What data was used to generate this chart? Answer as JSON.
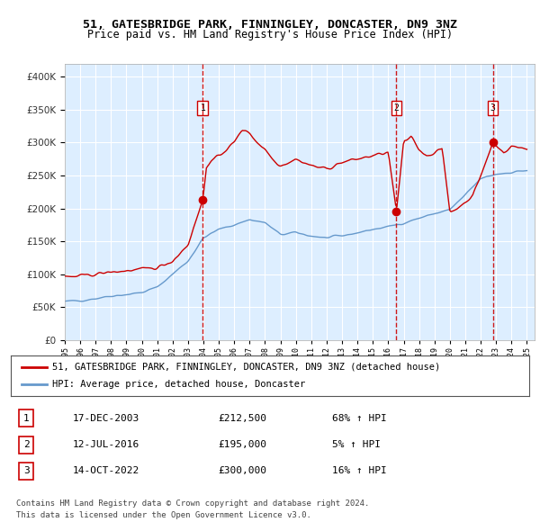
{
  "title1": "51, GATESBRIDGE PARK, FINNINGLEY, DONCASTER, DN9 3NZ",
  "title2": "Price paid vs. HM Land Registry's House Price Index (HPI)",
  "legend_line1": "51, GATESBRIDGE PARK, FINNINGLEY, DONCASTER, DN9 3NZ (detached house)",
  "legend_line2": "HPI: Average price, detached house, Doncaster",
  "sale1_date": "17-DEC-2003",
  "sale1_price": 212500,
  "sale1_hpi": "68% ↑ HPI",
  "sale2_date": "12-JUL-2016",
  "sale2_price": 195000,
  "sale2_hpi": "5% ↑ HPI",
  "sale3_date": "14-OCT-2022",
  "sale3_price": 300000,
  "sale3_hpi": "16% ↑ HPI",
  "footnote1": "Contains HM Land Registry data © Crown copyright and database right 2024.",
  "footnote2": "This data is licensed under the Open Government Licence v3.0.",
  "hpi_color": "#6699cc",
  "property_color": "#cc0000",
  "sale_marker_color": "#cc0000",
  "dashed_line_color": "#cc0000",
  "background_color": "#ddeeff",
  "grid_color": "#ffffff",
  "ylim": [
    0,
    420000
  ],
  "yticks": [
    0,
    50000,
    100000,
    150000,
    200000,
    250000,
    300000,
    350000,
    400000
  ],
  "x_start_year": 1995,
  "x_end_year": 2025,
  "sale1_x": 2003.96,
  "sale2_x": 2016.53,
  "sale3_x": 2022.79
}
